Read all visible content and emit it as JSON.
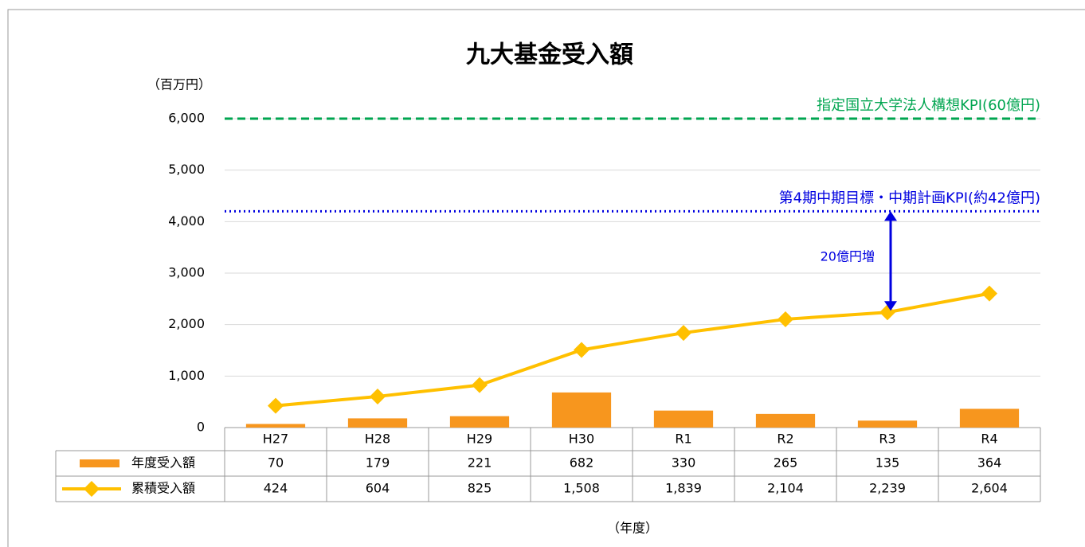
{
  "chart_data": {
    "type": "bar-line",
    "title": "九大基金受入額",
    "y_axis_label": "（百万円）",
    "x_axis_label": "（年度）",
    "categories": [
      "H27",
      "H28",
      "H29",
      "H30",
      "R1",
      "R2",
      "R3",
      "R4"
    ],
    "series": [
      {
        "name": "年度受入額",
        "type": "bar",
        "color": "#f7961e",
        "values": [
          70,
          179,
          221,
          682,
          330,
          265,
          135,
          364
        ]
      },
      {
        "name": "累積受入額",
        "type": "line",
        "color": "#ffc000",
        "values": [
          424,
          604,
          825,
          1508,
          1839,
          2104,
          2239,
          2604
        ],
        "value_labels": [
          "424",
          "604",
          "825",
          "1,508",
          "1,839",
          "2,104",
          "2,239",
          "2,604"
        ]
      }
    ],
    "ylim": [
      0,
      6000
    ],
    "yticks": [
      0,
      {
        "value": 1000,
        "label": "1,000"
      },
      {
        "value": 2000,
        "label": "2,000"
      },
      {
        "value": 3000,
        "label": "3,000"
      },
      {
        "value": 4000,
        "label": "4,000"
      },
      {
        "value": 5000,
        "label": "5,000"
      },
      {
        "value": 6000,
        "label": "6,000"
      }
    ],
    "grid": true,
    "reference_lines": [
      {
        "value": 6000,
        "label": "指定国立大学法人構想KPI(60億円)",
        "color": "#00a550",
        "style": "dashed"
      },
      {
        "value": 4200,
        "label": "第4期中期目標・中期計画KPI(約42億円)",
        "color": "#0000e0",
        "style": "dotted"
      }
    ],
    "annotation": "20億円増"
  }
}
